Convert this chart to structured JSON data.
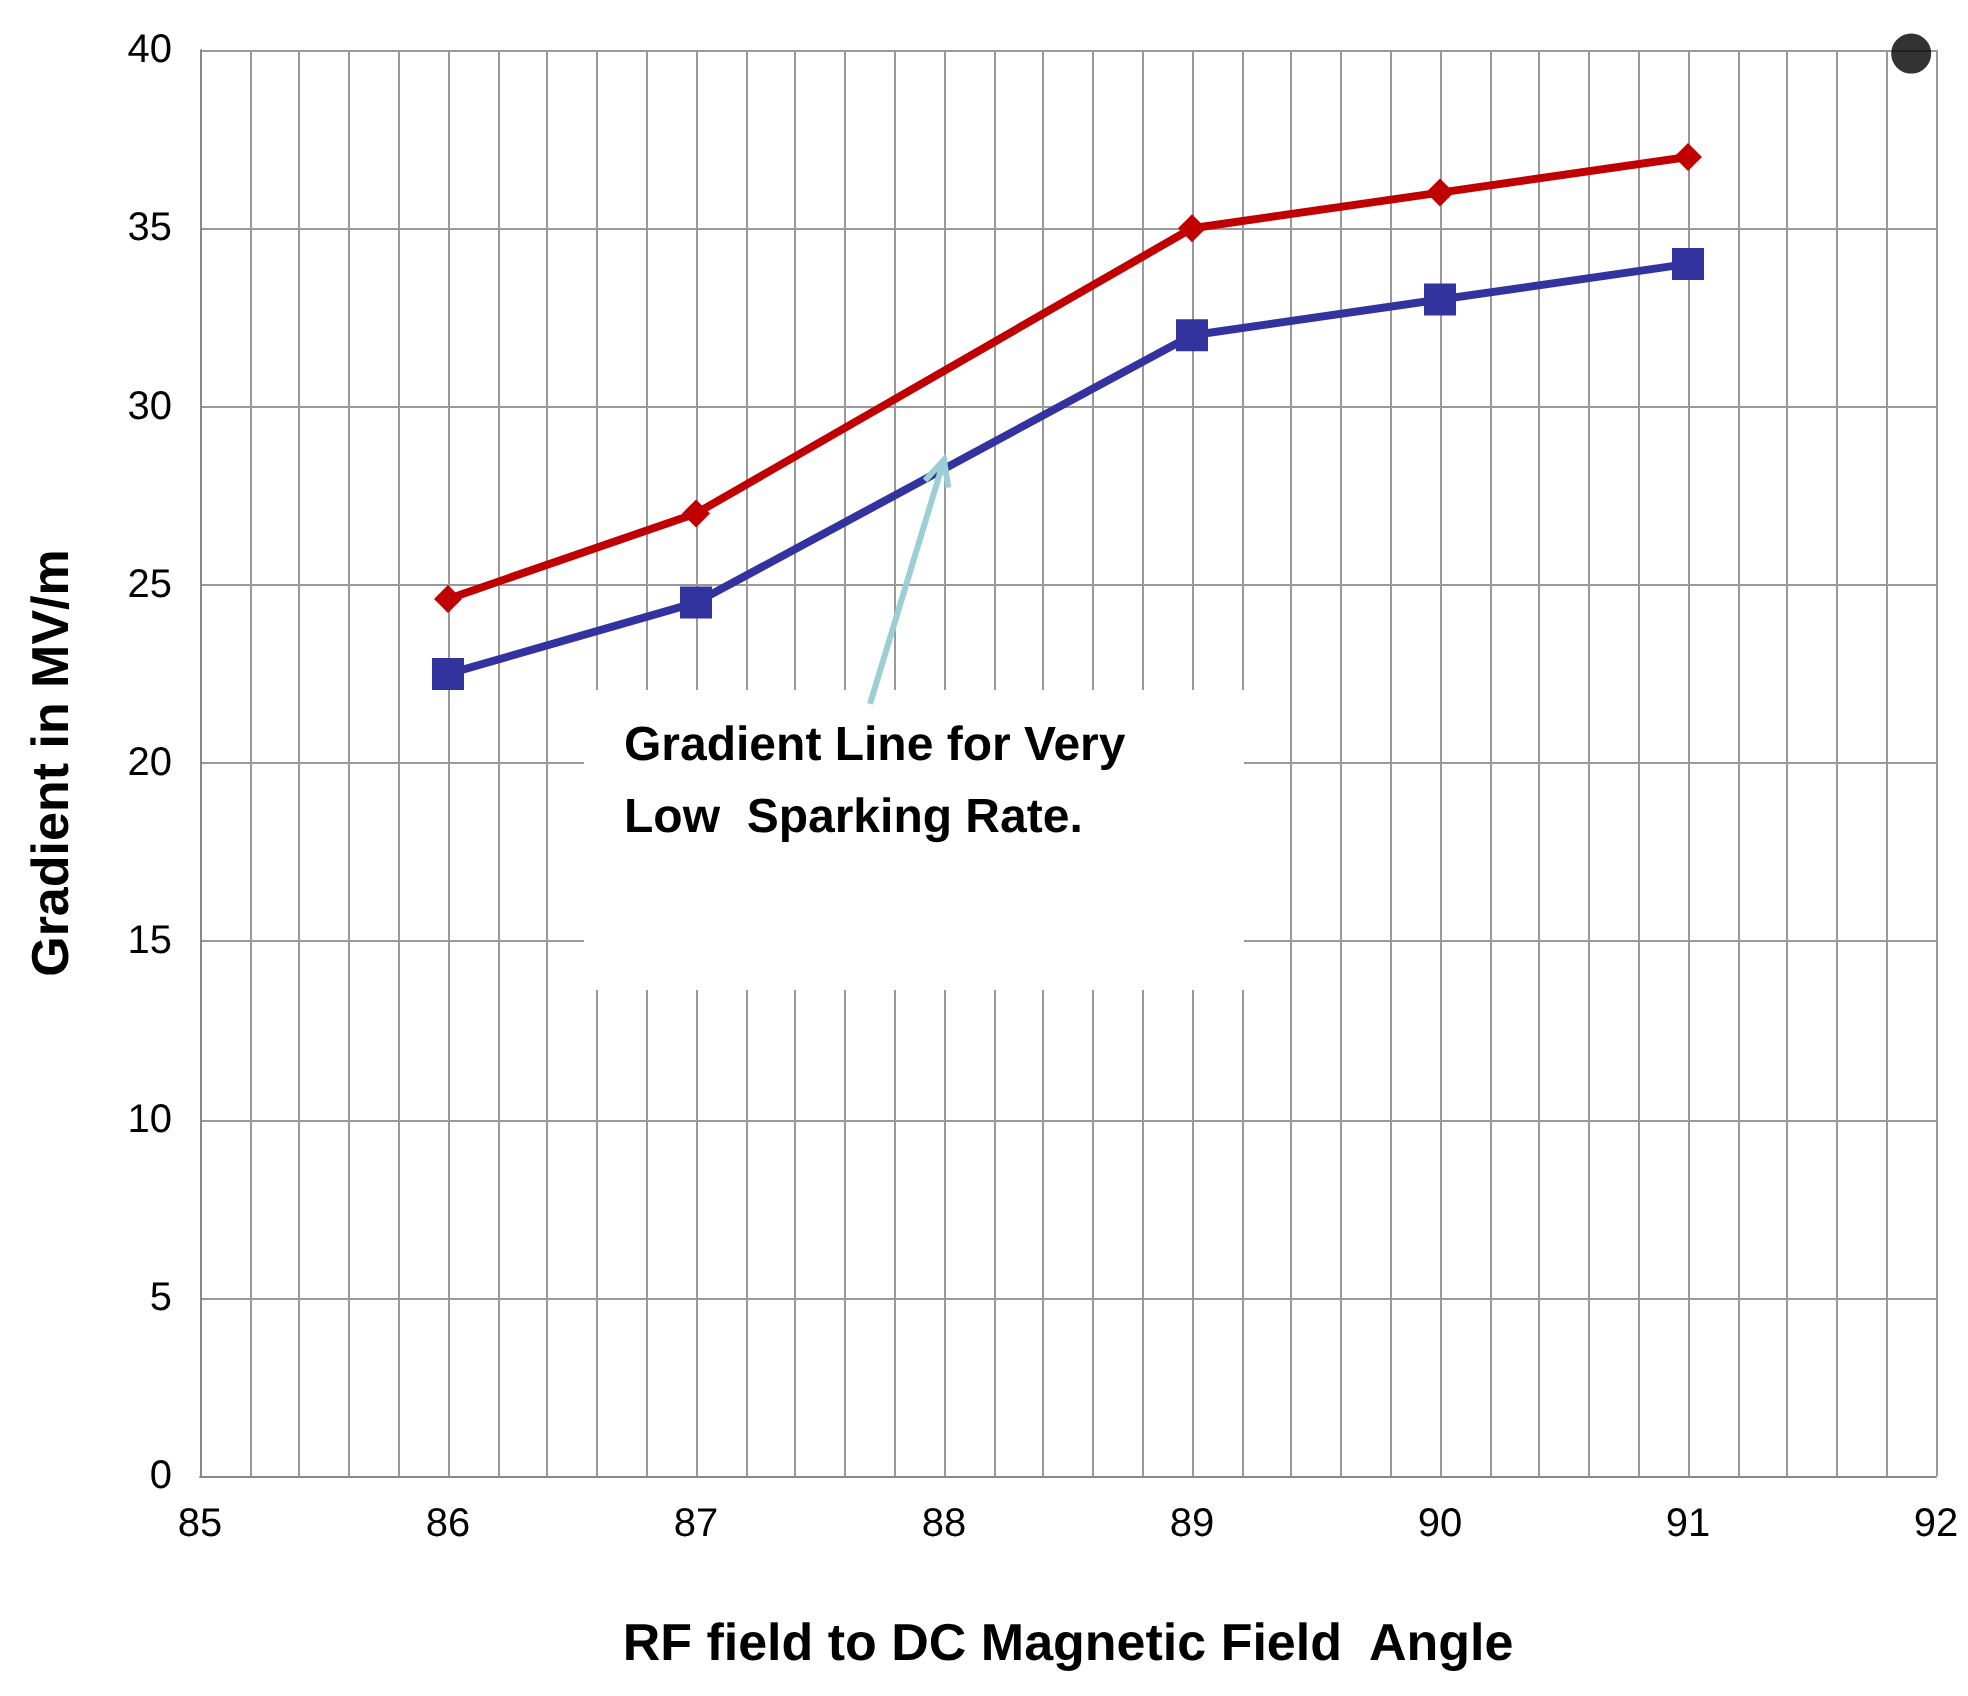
{
  "chart_data": {
    "type": "line",
    "xlabel": "RF field to DC Magnetic Field  Angle",
    "ylabel": "Gradient in MV/m",
    "xlim": [
      85,
      92
    ],
    "xticks": [
      85,
      86,
      87,
      88,
      89,
      90,
      91,
      92
    ],
    "ylim": [
      0,
      40
    ],
    "yticks": [
      0,
      5,
      10,
      15,
      20,
      25,
      30,
      35,
      40
    ],
    "grid": true,
    "series": [
      {
        "color": "#c00000",
        "marker": "diamond",
        "x": [
          86,
          87,
          89,
          90,
          91
        ],
        "values": [
          24.6,
          27,
          35,
          36,
          37
        ]
      },
      {
        "color": "#3333a0",
        "marker": "square",
        "x": [
          86,
          87,
          89,
          90,
          91
        ],
        "values": [
          22.5,
          24.5,
          32,
          33,
          34
        ]
      },
      {
        "type": "scatter",
        "color": "#000000",
        "marker": "circle",
        "x": [
          91.9
        ],
        "values": [
          39.9
        ]
      }
    ],
    "annotations": [
      {
        "text": "Gradient Line for Very Low  Sparking Rate.",
        "x": 88,
        "y": 28.5
      }
    ]
  }
}
